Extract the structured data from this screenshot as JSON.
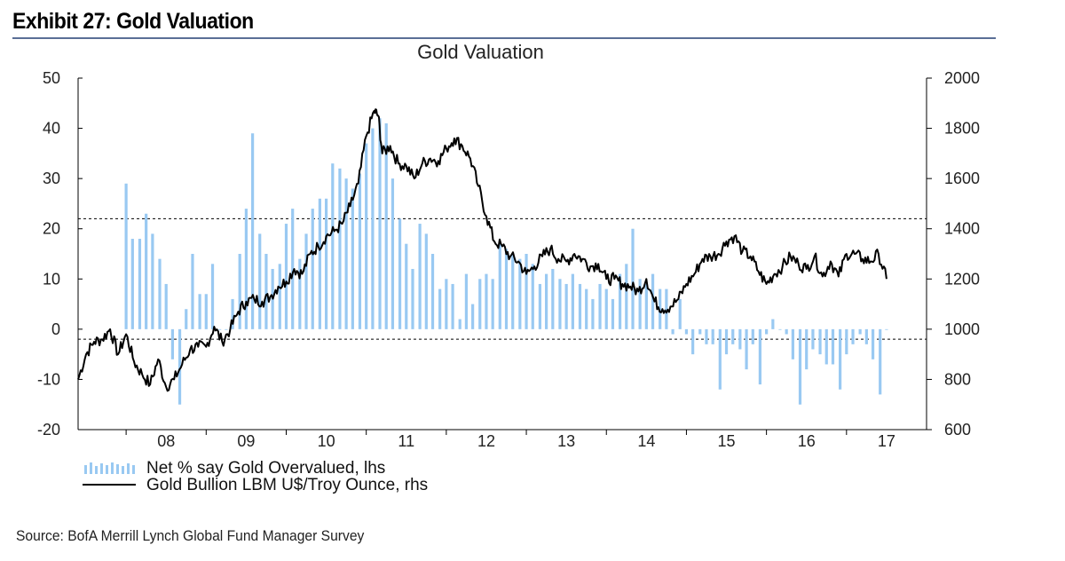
{
  "header": {
    "exhibit_title": "Exhibit 27: Gold Valuation",
    "source": "Source: BofA Merrill Lynch Global Fund Manager Survey"
  },
  "colors": {
    "bar": "#99c9f2",
    "line": "#000000",
    "rule": "#5a6f96",
    "reference_line": "#000000"
  },
  "chart_data": {
    "type": "bar+line",
    "title": "Gold Valuation",
    "x_tick_labels": [
      "08",
      "09",
      "10",
      "11",
      "12",
      "13",
      "14",
      "15",
      "16",
      "17"
    ],
    "left_axis": {
      "ylim": [
        -20,
        50
      ],
      "ticks": [
        -20,
        -10,
        0,
        10,
        20,
        30,
        40,
        50
      ]
    },
    "right_axis": {
      "ylim": [
        600,
        2000
      ],
      "ticks": [
        600,
        800,
        1000,
        1200,
        1400,
        1600,
        1800,
        2000
      ]
    },
    "reference_lines_lhs": [
      22,
      -2
    ],
    "x_range": [
      2007.4,
      2018.0
    ],
    "series": [
      {
        "name": "Net % say Gold Overvalued, lhs",
        "kind": "bar",
        "axis": "left",
        "x": [
          2008.0,
          2008.08,
          2008.17,
          2008.25,
          2008.33,
          2008.42,
          2008.5,
          2008.58,
          2008.67,
          2008.75,
          2008.83,
          2008.92,
          2009.0,
          2009.08,
          2009.17,
          2009.25,
          2009.33,
          2009.42,
          2009.5,
          2009.58,
          2009.67,
          2009.75,
          2009.83,
          2009.92,
          2010.0,
          2010.08,
          2010.17,
          2010.25,
          2010.33,
          2010.42,
          2010.5,
          2010.58,
          2010.67,
          2010.75,
          2010.83,
          2010.92,
          2011.0,
          2011.08,
          2011.17,
          2011.25,
          2011.33,
          2011.42,
          2011.5,
          2011.58,
          2011.67,
          2011.75,
          2011.83,
          2011.92,
          2012.0,
          2012.08,
          2012.17,
          2012.25,
          2012.33,
          2012.42,
          2012.5,
          2012.58,
          2012.67,
          2012.75,
          2012.83,
          2012.92,
          2013.0,
          2013.08,
          2013.17,
          2013.25,
          2013.33,
          2013.42,
          2013.5,
          2013.58,
          2013.67,
          2013.75,
          2013.83,
          2013.92,
          2014.0,
          2014.08,
          2014.17,
          2014.25,
          2014.33,
          2014.42,
          2014.5,
          2014.58,
          2014.67,
          2014.75,
          2014.83,
          2014.92,
          2015.0,
          2015.08,
          2015.17,
          2015.25,
          2015.33,
          2015.42,
          2015.5,
          2015.58,
          2015.67,
          2015.75,
          2015.83,
          2015.92,
          2016.0,
          2016.08,
          2016.17,
          2016.25,
          2016.33,
          2016.42,
          2016.5,
          2016.58,
          2016.67,
          2016.75,
          2016.83,
          2016.92,
          2017.0,
          2017.08,
          2017.17,
          2017.25,
          2017.33,
          2017.42,
          2017.5
        ],
        "values": [
          29,
          18,
          18,
          23,
          19,
          14,
          9,
          -6,
          -15,
          4,
          15,
          7,
          7,
          13,
          0,
          0,
          6,
          15,
          24,
          39,
          19,
          15,
          12,
          13,
          21,
          24,
          14,
          19,
          24,
          26,
          26,
          33,
          32,
          30,
          28,
          31,
          37,
          40,
          42,
          41,
          30,
          22,
          17,
          12,
          21,
          19,
          15,
          8,
          10,
          9,
          2,
          11,
          5,
          10,
          11,
          10,
          17,
          16,
          15,
          14,
          15,
          13,
          9,
          11,
          12,
          10,
          9,
          11,
          9,
          8,
          6,
          9,
          8,
          6,
          11,
          13,
          20,
          10,
          9,
          11,
          8,
          8,
          -1,
          6,
          -1,
          -5,
          -1,
          -3,
          -3,
          -12,
          -5,
          -3,
          -4,
          -8,
          -3,
          -11,
          -1,
          2,
          0,
          -1,
          -6,
          -15,
          -8,
          -4,
          -5,
          -7,
          -7,
          -12,
          -5,
          -3,
          -1,
          -3,
          -6,
          -13,
          0
        ]
      },
      {
        "name": "Gold Bullion LBM U$/Troy Ounce, rhs",
        "kind": "line",
        "axis": "right",
        "x": [
          2007.4,
          2007.5,
          2007.6,
          2007.7,
          2007.8,
          2007.9,
          2008.0,
          2008.1,
          2008.2,
          2008.3,
          2008.4,
          2008.5,
          2008.6,
          2008.7,
          2008.8,
          2008.9,
          2009.0,
          2009.1,
          2009.2,
          2009.3,
          2009.4,
          2009.5,
          2009.6,
          2009.7,
          2009.8,
          2009.9,
          2010.0,
          2010.1,
          2010.2,
          2010.3,
          2010.4,
          2010.5,
          2010.6,
          2010.7,
          2010.8,
          2010.9,
          2011.0,
          2011.1,
          2011.15,
          2011.2,
          2011.3,
          2011.4,
          2011.5,
          2011.6,
          2011.7,
          2011.8,
          2011.9,
          2012.0,
          2012.1,
          2012.2,
          2012.3,
          2012.4,
          2012.5,
          2012.6,
          2012.7,
          2012.8,
          2012.9,
          2013.0,
          2013.1,
          2013.2,
          2013.3,
          2013.4,
          2013.5,
          2013.6,
          2013.7,
          2013.8,
          2013.9,
          2014.0,
          2014.1,
          2014.2,
          2014.3,
          2014.4,
          2014.5,
          2014.6,
          2014.7,
          2014.8,
          2014.9,
          2015.0,
          2015.1,
          2015.2,
          2015.3,
          2015.4,
          2015.5,
          2015.6,
          2015.7,
          2015.8,
          2015.9,
          2016.0,
          2016.1,
          2016.2,
          2016.3,
          2016.4,
          2016.5,
          2016.6,
          2016.7,
          2016.8,
          2016.9,
          2017.0,
          2017.1,
          2017.2,
          2017.3,
          2017.4,
          2017.5
        ],
        "values": [
          800,
          900,
          950,
          960,
          1000,
          900,
          980,
          870,
          820,
          780,
          880,
          770,
          800,
          860,
          920,
          930,
          930,
          1010,
          950,
          1000,
          1070,
          1110,
          1120,
          1110,
          1130,
          1170,
          1190,
          1240,
          1220,
          1300,
          1330,
          1370,
          1390,
          1420,
          1490,
          1580,
          1770,
          1870,
          1850,
          1700,
          1730,
          1660,
          1650,
          1600,
          1660,
          1680,
          1670,
          1720,
          1760,
          1730,
          1680,
          1570,
          1450,
          1350,
          1330,
          1290,
          1270,
          1220,
          1250,
          1290,
          1320,
          1280,
          1270,
          1300,
          1280,
          1250,
          1260,
          1200,
          1200,
          1180,
          1170,
          1150,
          1200,
          1110,
          1080,
          1090,
          1120,
          1180,
          1220,
          1280,
          1290,
          1300,
          1350,
          1370,
          1310,
          1290,
          1230,
          1180,
          1220,
          1250,
          1290,
          1260,
          1240,
          1290,
          1210,
          1270,
          1210,
          1300,
          1300,
          1280,
          1270,
          1300,
          1200
        ]
      }
    ]
  }
}
